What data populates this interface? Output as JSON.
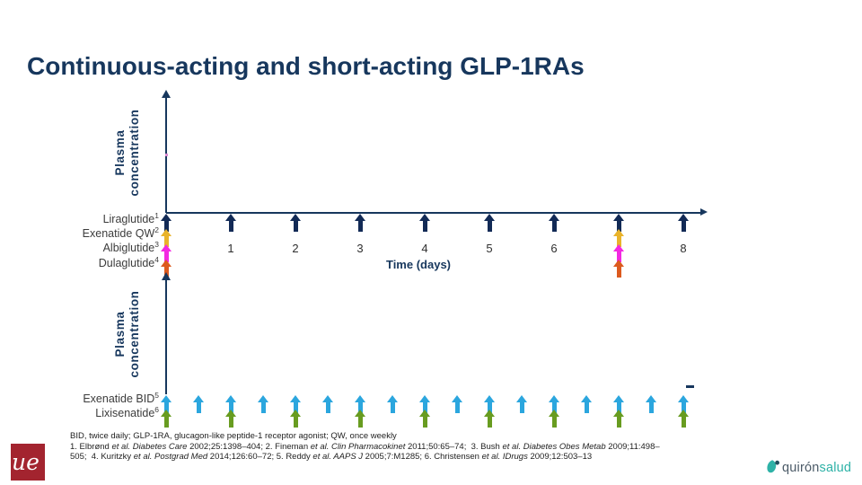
{
  "title": "Continuous-acting and short-acting GLP-1RAs",
  "colors": {
    "title_navy": "#17375d",
    "axis_navy": "#17375d",
    "liraglutide_navy": "#122a56",
    "exenatide_qw_gold": "#e9b32a",
    "albiglutide_magenta": "#f328e2",
    "dulaglutide_orange": "#dc5a1e",
    "exenatide_bid_blue": "#2ba6de",
    "lixisenatide_green": "#689c20",
    "ue_logo_red": "#a3242f",
    "quiron_teal": "#2eb2a7",
    "quiron_slate": "#4b5a67"
  },
  "chart_data": [
    {
      "type": "event-timeline",
      "title": "Continuous-acting GLP-1RA dosing",
      "ylabel": "Plasma\nconcentration",
      "xlabel": "Time (days)",
      "x_range": [
        0,
        8.3
      ],
      "x_unit": "days",
      "x_ticks": [
        1,
        2,
        3,
        4,
        5,
        6,
        8
      ],
      "grid": false,
      "legend_position": "left",
      "series": [
        {
          "label": "Liraglutide",
          "sup": "1",
          "color": "#122a56",
          "dose_interval_days": 1,
          "dose_days": [
            0,
            1,
            2,
            3,
            4,
            5,
            6,
            7,
            8
          ]
        },
        {
          "label": "Exenatide QW",
          "sup": "2",
          "color": "#e9b32a",
          "dose_interval_days": 7,
          "dose_days": [
            0,
            7
          ]
        },
        {
          "label": "Albiglutide",
          "sup": "3",
          "color": "#f328e2",
          "dose_interval_days": 7,
          "dose_days": [
            0,
            7
          ]
        },
        {
          "label": "Dulaglutide",
          "sup": "4",
          "color": "#dc5a1e",
          "dose_interval_days": 7,
          "dose_days": [
            0,
            7
          ]
        }
      ]
    },
    {
      "type": "event-timeline",
      "title": "Short-acting GLP-1RA dosing",
      "ylabel": "Plasma\nconcentration",
      "xlabel": "",
      "x_range": [
        0,
        8.3
      ],
      "x_unit": "days",
      "x_ticks": [],
      "grid": false,
      "legend_position": "left",
      "series": [
        {
          "label": "Exenatide BID",
          "sup": "5",
          "color": "#2ba6de",
          "dose_interval_days": 0.5,
          "dose_days": [
            0,
            0.5,
            1,
            1.5,
            2,
            2.5,
            3,
            3.5,
            4,
            4.5,
            5,
            5.5,
            6,
            6.5,
            7,
            7.5,
            8
          ]
        },
        {
          "label": "Lixisenatide",
          "sup": "6",
          "color": "#689c20",
          "dose_interval_days": 1,
          "dose_days": [
            0,
            1,
            2,
            3,
            4,
            5,
            6,
            7,
            8
          ]
        }
      ]
    }
  ],
  "footer": {
    "lines": [
      [
        {
          "t": "BID, twice daily; GLP-1RA, glucagon-like peptide-1 receptor agonist; QW, once weekly",
          "i": false
        }
      ],
      [
        {
          "t": "1. Elbrønd ",
          "i": false
        },
        {
          "t": "et al. Diabetes Care",
          "i": true
        },
        {
          "t": " 2002;25:1398–404; 2. Fineman ",
          "i": false
        },
        {
          "t": "et al. Clin Pharmacokinet",
          "i": true
        },
        {
          "t": " 2011;50:65–74;  3. Bush ",
          "i": false
        },
        {
          "t": "et al. Diabetes Obes Metab",
          "i": true
        },
        {
          "t": " 2009;11:498–",
          "i": false
        }
      ],
      [
        {
          "t": "505;  4. Kuritzky ",
          "i": false
        },
        {
          "t": "et al. Postgrad Med",
          "i": true
        },
        {
          "t": " 2014;126:60–72; 5. Reddy ",
          "i": false
        },
        {
          "t": "et al. AAPS J",
          "i": true
        },
        {
          "t": " 2005;7:M1285; 6. Christensen ",
          "i": false
        },
        {
          "t": "et al. IDrugs",
          "i": true
        },
        {
          "t": " 2009;12:503–13",
          "i": false
        }
      ]
    ]
  },
  "logos": {
    "ue": {
      "text": "ue"
    },
    "quiron": {
      "part1": "quirón",
      "part2": "salud"
    }
  }
}
